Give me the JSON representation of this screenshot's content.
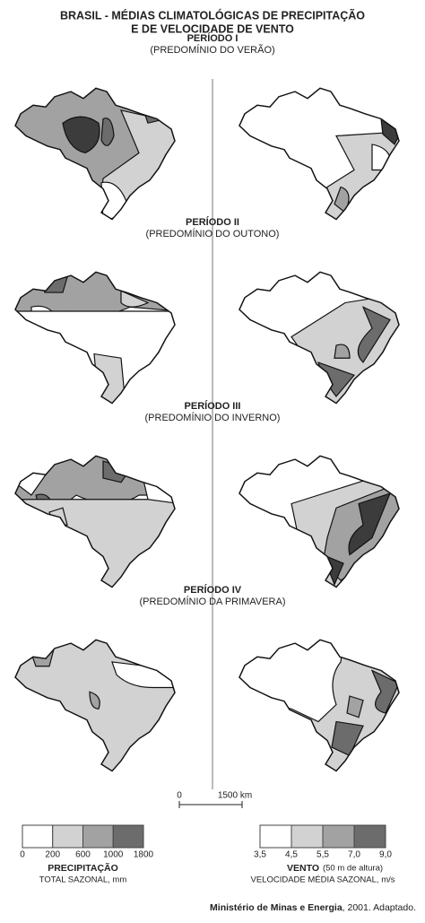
{
  "header": {
    "title_lines": [
      "BRASIL - MÉDIAS CLIMATOLÓGICAS DE PRECIPITAÇÃO",
      "E DE VELOCIDADE DE VENTO"
    ]
  },
  "periods": [
    {
      "name": "PERÍODO I",
      "subtitle": "(PREDOMÍNIO DO VERÃO)"
    },
    {
      "name": "PERÍODO II",
      "subtitle": "(PREDOMÍNIO DO OUTONO)"
    },
    {
      "name": "PERÍODO III",
      "subtitle": "(PREDOMÍNIO DO INVERNO)"
    },
    {
      "name": "PERÍODO IV",
      "subtitle": "(PREDOMÍNIO DA PRIMAVERA)"
    }
  ],
  "scale": {
    "start": "0",
    "end": "1500 km"
  },
  "legends": [
    {
      "ticks": [
        "0",
        "200",
        "600",
        "1000",
        "1800"
      ],
      "title": "PRECIPITAÇÃO",
      "subtitle": "TOTAL SAZONAL, mm"
    },
    {
      "ticks": [
        "3,5",
        "4,5",
        "5,5",
        "7,0",
        "9,0"
      ],
      "title": "VENTO",
      "note": "(50 m de altura)",
      "subtitle": "VELOCIDADE MÉDIA SAZONAL, m/s"
    }
  ],
  "source": {
    "name": "Ministério de Minas e Energia",
    "rest": ", 2001. Adaptado."
  }
}
